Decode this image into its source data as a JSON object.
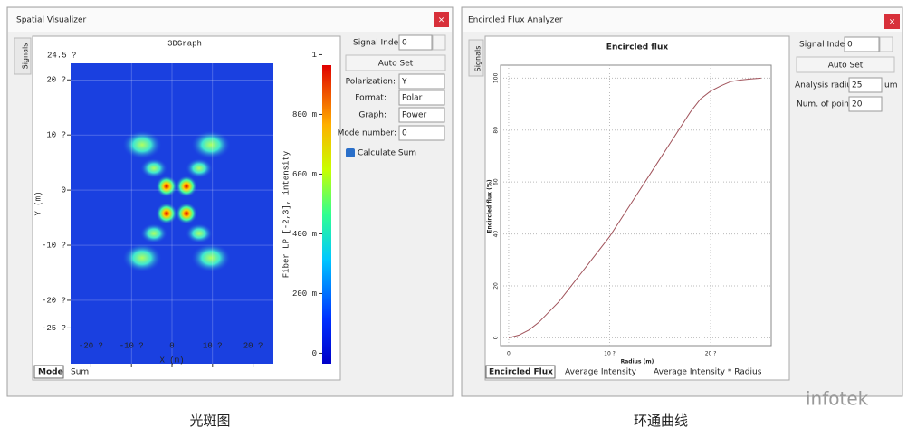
{
  "left_window": {
    "title": "Spatial Visualizer",
    "side_tab": "Signals",
    "plot": {
      "title": "3DGraph",
      "max_label": "24.5 ?",
      "x_label": "X (m)",
      "y_label": "Y (m)",
      "colorbar_label": "Fiber LP [-2,3], intensity",
      "xlim": [
        -25,
        25
      ],
      "ylim": [
        -31.5,
        23
      ],
      "xticks": [
        {
          "value": -20,
          "label": "-20 ?"
        },
        {
          "value": -10,
          "label": "-10 ?"
        },
        0,
        {
          "value": 10,
          "label": "10 ?"
        },
        {
          "value": 20,
          "label": "20 ?"
        }
      ],
      "yticks": [
        {
          "value": 20,
          "label": "20 ?"
        },
        {
          "value": 10,
          "label": "10 ?"
        },
        0,
        {
          "value": -10,
          "label": "-10 ?"
        },
        {
          "value": -20,
          "label": "-20 ?"
        },
        {
          "value": -25,
          "label": "-25 ?"
        }
      ],
      "clim": [
        -0.035,
        0.965
      ],
      "cticks": [
        0,
        {
          "value": 0.2,
          "label": "200 m"
        },
        {
          "value": 0.4,
          "label": "400 m"
        },
        {
          "value": 0.6,
          "label": "600 m"
        },
        {
          "value": 0.8,
          "label": "800 m"
        },
        1
      ]
    },
    "controls": {
      "signal_index_label": "Signal Index:",
      "signal_index": 0,
      "auto_set": "Auto Set",
      "polarization_label": "Polarization:",
      "polarization": "Y",
      "format_label": "Format:",
      "format": "Polar",
      "graph_label": "Graph:",
      "graph": "Power",
      "mode_number_label": "Mode number:",
      "mode_number": 0,
      "calculate_sum": "Calculate Sum"
    },
    "tabs": [
      "Mode",
      "Sum"
    ]
  },
  "right_window": {
    "title": "Encircled Flux Analyzer",
    "side_tab": "Signals",
    "plot": {
      "title": "Encircled flux",
      "x_label": "Radius (m)",
      "y_label": "Encircled flux (%)",
      "x": [
        0,
        1,
        2,
        3,
        4,
        5,
        6,
        7,
        8,
        9,
        10,
        11,
        12,
        13,
        14,
        15,
        16,
        17,
        18,
        19,
        20,
        21,
        22,
        23,
        24,
        25
      ],
      "values": [
        0,
        1,
        3,
        6,
        10,
        14,
        19,
        24,
        29,
        34,
        39,
        45,
        51,
        57,
        63,
        69,
        75,
        81,
        87,
        92,
        95,
        97,
        98.7,
        99.3,
        99.7,
        100
      ],
      "color": "#a0525a",
      "xlim": [
        -0.8,
        26
      ],
      "ylim": [
        -3,
        105
      ],
      "xticks": [
        0,
        {
          "value": 10,
          "label": "10 ?"
        },
        {
          "value": 20,
          "label": "20 ?"
        }
      ],
      "yticks": [
        0,
        20,
        40,
        60,
        80,
        100
      ],
      "grid": true
    },
    "controls": {
      "signal_index_label": "Signal Index:",
      "signal_index": 0,
      "auto_set": "Auto Set",
      "analysis_radius_label": "Analysis radius:",
      "analysis_radius": 25,
      "analysis_radius_unit": "um",
      "num_points_label": "Num. of points",
      "num_points": 20
    },
    "tabs": [
      "Encircled Flux",
      "Average Intensity",
      "Average Intensity * Radius"
    ]
  },
  "watermark": "infotek",
  "captions": [
    "光斑图",
    "环通曲线"
  ]
}
